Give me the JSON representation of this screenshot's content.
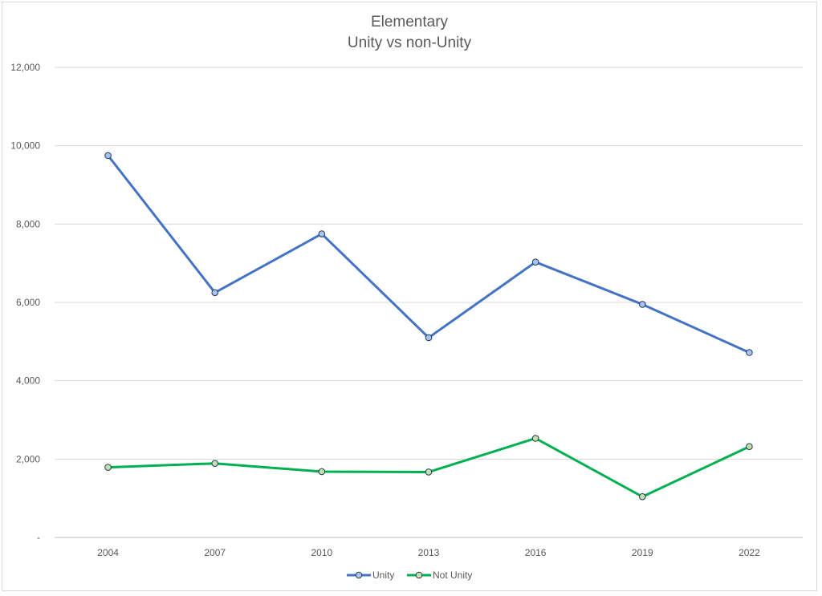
{
  "chart_data": {
    "type": "line",
    "title": [
      "Elementary",
      "Unity vs non-Unity"
    ],
    "categories": [
      "2004",
      "2007",
      "2010",
      "2013",
      "2016",
      "2019",
      "2022"
    ],
    "ylim": [
      0,
      12000
    ],
    "yticks": [
      0,
      2000,
      4000,
      6000,
      8000,
      10000,
      12000
    ],
    "ytick_labels": [
      "-",
      "2,000",
      "4,000",
      "6,000",
      "8,000",
      "10,000",
      "12,000"
    ],
    "grid": true,
    "legend_position": "bottom",
    "series": [
      {
        "name": "Unity",
        "color": "#4472c4",
        "marker_fill": "#a9c4eb",
        "values": [
          9750,
          6250,
          7750,
          5100,
          7030,
          5950,
          4720
        ]
      },
      {
        "name": "Not Unity",
        "color": "#00b050",
        "marker_fill": "#c5e0a5",
        "values": [
          1790,
          1890,
          1680,
          1670,
          2530,
          1040,
          2320
        ]
      }
    ]
  }
}
